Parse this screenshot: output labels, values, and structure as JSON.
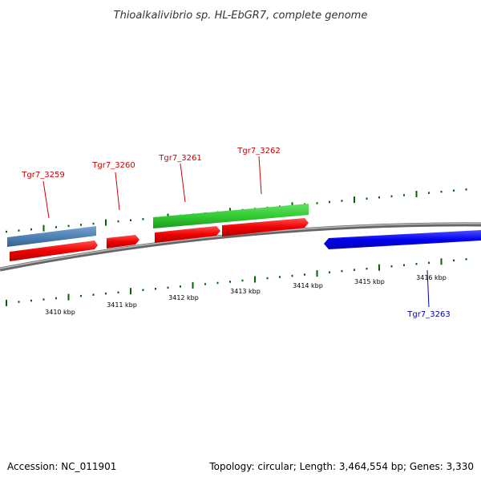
{
  "title": "Thioalkalivibrio sp. HL-EbGR7, complete genome",
  "footer": {
    "accession": "Accession: NC_011901",
    "summary": "Topology: circular; Length: 3,464,554 bp; Genes: 3,330"
  },
  "colors": {
    "forward_cds": "#ee0000",
    "reverse_cds": "#0000ee",
    "gene": "#4f82b6",
    "highlight_gene": "#33cc33",
    "ticks": "#006600",
    "backbone": "#888888",
    "forward_label": "#cc0000",
    "reverse_label": "#0000aa"
  },
  "scale": {
    "labels": [
      "3410 kbp",
      "3411 kbp",
      "3412 kbp",
      "3413 kbp",
      "3414 kbp",
      "3415 kbp",
      "3416 kbp"
    ]
  },
  "features": [
    {
      "label": "Tgr7_3259",
      "strand": "forward"
    },
    {
      "label": "Tgr7_3260",
      "strand": "forward"
    },
    {
      "label": "Tgr7_3261",
      "strand": "forward"
    },
    {
      "label": "Tgr7_3262",
      "strand": "forward"
    },
    {
      "label": "Tgr7_3263",
      "strand": "reverse"
    }
  ]
}
